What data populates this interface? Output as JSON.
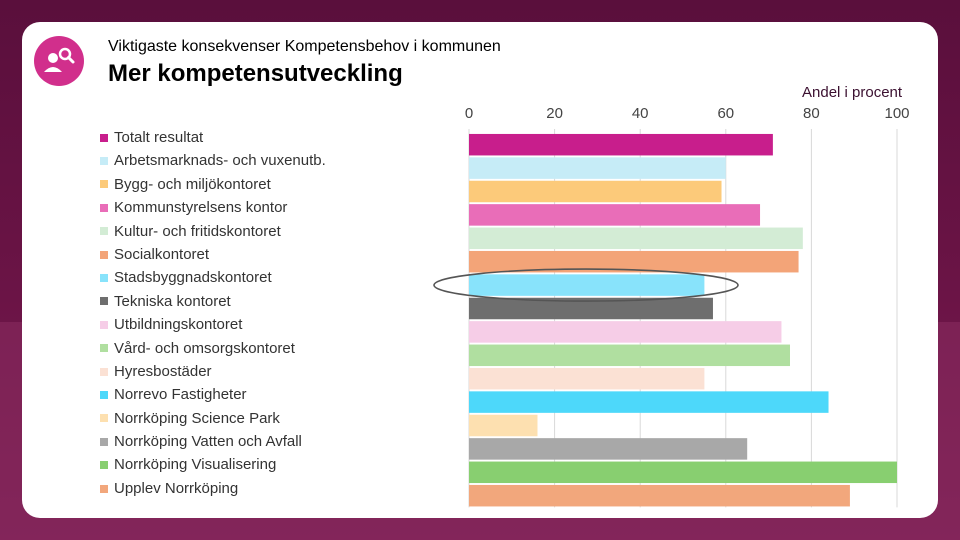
{
  "header": {
    "subtitle": "Viktigaste konsekvenser Kompetensbehov i kommunen",
    "title": "Mer kompetensutveckling",
    "logo_icon": "person-search-icon"
  },
  "colors": {
    "background": "#5a0f3c",
    "logo": "#d12f8c",
    "highlight_ellipse": "#555555"
  },
  "chart_data": {
    "type": "bar",
    "orientation": "horizontal",
    "xlabel": "Andel i procent",
    "xlim": [
      0,
      100
    ],
    "xticks": [
      "0",
      "20",
      "40",
      "60",
      "80",
      "100"
    ],
    "grid": true,
    "legend_position": "left",
    "highlighted_category": "Stadsbyggnadskontoret",
    "categories": [
      "Totalt resultat",
      "Arbetsmarknads- och vuxenutb.",
      "Bygg- och miljökontoret",
      "Kommunstyrelsens kontor",
      "Kultur- och fritidskontoret",
      "Socialkontoret",
      "Stadsbyggnadskontoret",
      "Tekniska kontoret",
      "Utbildningskontoret",
      "Vård- och omsorgskontoret",
      "Hyresbostäder",
      "Norrevo Fastigheter",
      "Norrköping Science Park",
      "Norrköping Vatten och Avfall",
      "Norrköping Visualisering",
      "Upplev Norrköping"
    ],
    "values": [
      71,
      60,
      59,
      68,
      78,
      77,
      55,
      57,
      73,
      75,
      55,
      84,
      16,
      65,
      100,
      89
    ],
    "colors": [
      "#c81e8c",
      "#c6ecf7",
      "#fcca7a",
      "#e96db8",
      "#d3ecd5",
      "#f3a478",
      "#88e3fb",
      "#6e6e6e",
      "#f6cde7",
      "#b0dfa0",
      "#fbe1d4",
      "#4dd8fa",
      "#fde0b0",
      "#a8a8a8",
      "#88cf70",
      "#f2a77c"
    ]
  }
}
